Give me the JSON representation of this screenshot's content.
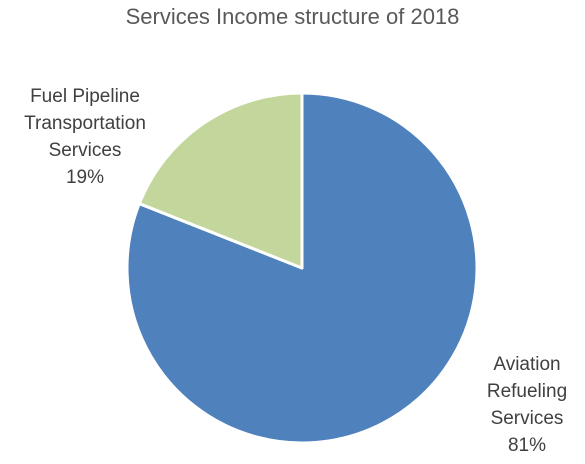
{
  "chart_data": {
    "type": "pie",
    "title": "Services Income structure of 2018",
    "slices": [
      {
        "label_lines": [
          "Aviation",
          "Refueling",
          "Services"
        ],
        "percent_label": "81%",
        "value": 81,
        "color": "#4f81bd"
      },
      {
        "label_lines": [
          "Fuel Pipeline",
          "Transportation",
          "Services"
        ],
        "percent_label": "19%",
        "value": 19,
        "color": "#c3d69b"
      }
    ]
  }
}
